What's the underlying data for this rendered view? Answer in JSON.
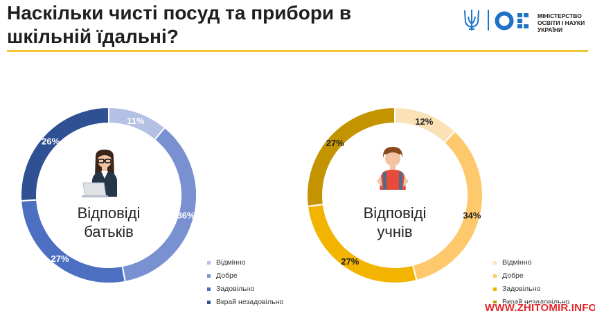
{
  "header": {
    "title_line1": "Наскільки чисті посуд та прибори в",
    "title_line2": "шкільній їдальні?"
  },
  "logo": {
    "line1": "МІНІСТЕРСТВО",
    "line2": "ОСВІТИ І НАУКИ",
    "line3": "УКРАЇНИ"
  },
  "watermark": "WWW.ZHITOMIR.INFO",
  "chart_data": [
    {
      "type": "pie",
      "donut": true,
      "title": "Відповіді батьків",
      "center_line1": "Відповіді",
      "center_line2": "батьків",
      "icon": "parent-woman-laptop-icon",
      "categories": [
        "Відмінно",
        "Добре",
        "Задовільно",
        "Вкрай незадовільно"
      ],
      "values": [
        11,
        36,
        27,
        26
      ],
      "labels": [
        "11%",
        "36%",
        "27%",
        "26%"
      ],
      "colors": [
        "#b4c0e4",
        "#7991d1",
        "#4d6fc2",
        "#2f5193"
      ],
      "legend_position": "bottom-right"
    },
    {
      "type": "pie",
      "donut": true,
      "title": "Відповіді учнів",
      "center_line1": "Відповіді",
      "center_line2": "учнів",
      "icon": "student-boy-icon",
      "categories": [
        "Відмінно",
        "Добре",
        "Задовільно",
        "Вкрай незадовільно"
      ],
      "values": [
        12,
        34,
        27,
        27
      ],
      "labels": [
        "12%",
        "34%",
        "27%",
        "27%"
      ],
      "colors": [
        "#fbe1b6",
        "#fdc96c",
        "#f3b400",
        "#c49400"
      ],
      "legend_position": "bottom-right"
    }
  ]
}
